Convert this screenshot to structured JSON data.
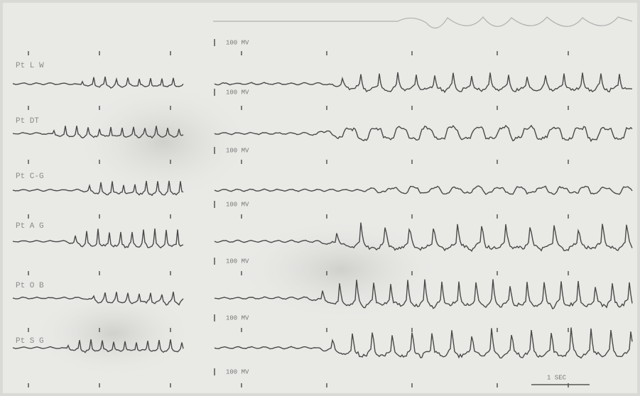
{
  "rows": [
    {
      "label": "Pt L W"
    },
    {
      "label": "Pt DT"
    },
    {
      "label": "Pt C-G"
    },
    {
      "label": "Pt A G"
    },
    {
      "label": "Pt O B"
    },
    {
      "label": "Pt S G"
    }
  ],
  "scale_labels": [
    "100 MV",
    "100 MV",
    "100 MV",
    "100 MV",
    "100 MV",
    "100 MV",
    "100 MV"
  ],
  "time_scale": "1 SEC"
}
